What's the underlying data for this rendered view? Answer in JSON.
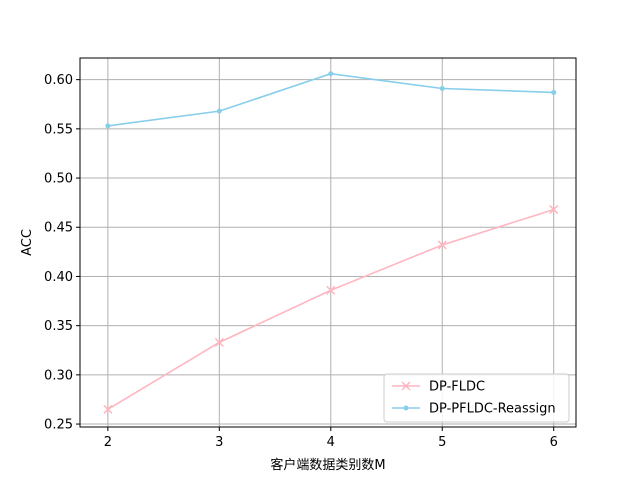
{
  "chart_data": {
    "type": "line",
    "xlabel": "客户端数据类别数M",
    "ylabel": "ACC",
    "x": [
      2,
      3,
      4,
      5,
      6
    ],
    "xticks": [
      "2",
      "3",
      "4",
      "5",
      "6"
    ],
    "xlim": [
      1.75,
      6.2
    ],
    "ylim": [
      0.247,
      0.622
    ],
    "yticks": [
      "0.25",
      "0.30",
      "0.35",
      "0.40",
      "0.45",
      "0.50",
      "0.55",
      "0.60"
    ],
    "grid": true,
    "legend_position": "bottom-right",
    "series": [
      {
        "name": "DP-FLDC",
        "color": "#ffb6c1",
        "marker": "x",
        "values": [
          0.265,
          0.333,
          0.386,
          0.432,
          0.468
        ]
      },
      {
        "name": "DP-PFLDC-Reassign",
        "color": "#87ceeb",
        "marker": "dot",
        "values": [
          0.553,
          0.568,
          0.606,
          0.591,
          0.587
        ]
      }
    ]
  }
}
